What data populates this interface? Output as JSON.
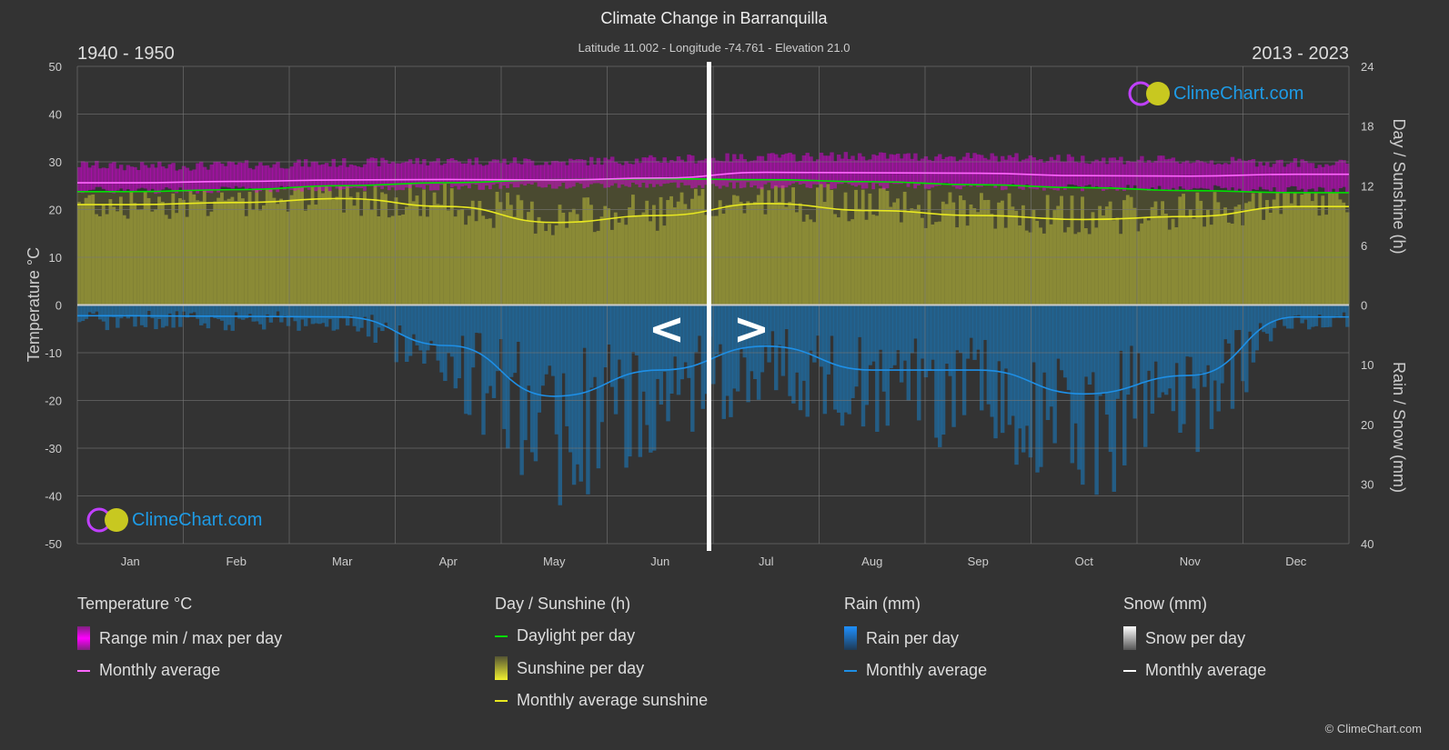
{
  "header": {
    "title": "Climate Change in Barranquilla",
    "subtitle": "Latitude 11.002 - Longitude -74.761 - Elevation 21.0",
    "period_left": "1940 - 1950",
    "period_right": "2013 - 2023",
    "nav_prev": "<",
    "nav_next": ">"
  },
  "logo": {
    "text": "ClimeChart.com"
  },
  "copyright": "© ClimeChart.com",
  "colors": {
    "background": "#333333",
    "temp_range": "#e000e0",
    "temp_avg": "#ff66ff",
    "daylight": "#00e000",
    "sunshine": "#8a8a36",
    "sunshine_avg": "#e8e820",
    "rain": "#1e6fa8",
    "rain_avg": "#1e8fe6",
    "snow_avg": "#ffffff"
  },
  "chart_data": {
    "type": "line",
    "categories": [
      "Jan",
      "Feb",
      "Mar",
      "Apr",
      "May",
      "Jun",
      "Jul",
      "Aug",
      "Sep",
      "Oct",
      "Nov",
      "Dec"
    ],
    "y_left": {
      "label": "Temperature °C",
      "range": [
        -50,
        50
      ],
      "ticks": [
        "50",
        "40",
        "30",
        "20",
        "10",
        "0",
        "-10",
        "-20",
        "-30",
        "-40",
        "-50"
      ]
    },
    "y_right_top": {
      "label": "Day / Sunshine (h)",
      "range": [
        0,
        24
      ],
      "ticks": [
        "24",
        "18",
        "12",
        "6",
        "0"
      ]
    },
    "y_right_bottom": {
      "label": "Rain / Snow (mm)",
      "range": [
        0,
        40
      ],
      "ticks": [
        "0",
        "10",
        "20",
        "30",
        "40"
      ]
    },
    "grid": true,
    "series": [
      {
        "name": "Range min / max per day",
        "kind": "band",
        "min": [
          24.0,
          24.2,
          24.5,
          24.8,
          25.0,
          25.2,
          25.0,
          25.0,
          24.8,
          24.6,
          24.4,
          24.2
        ],
        "max": [
          29.0,
          29.3,
          29.8,
          30.2,
          30.0,
          30.5,
          31.0,
          31.2,
          31.0,
          30.6,
          30.2,
          29.8
        ]
      },
      {
        "name": "Monthly average",
        "kind": "temp_avg",
        "values": [
          25.6,
          25.9,
          26.2,
          26.3,
          26.2,
          26.6,
          27.8,
          27.7,
          27.6,
          27.1,
          27.0,
          27.4
        ]
      },
      {
        "name": "Daylight per day",
        "kind": "daylight",
        "values": [
          11.4,
          11.6,
          12.0,
          12.3,
          12.6,
          12.7,
          12.6,
          12.4,
          12.1,
          11.8,
          11.5,
          11.3
        ]
      },
      {
        "name": "Monthly average sunshine",
        "kind": "sunshine_avg",
        "values": [
          10.1,
          10.3,
          10.7,
          9.9,
          8.3,
          9.0,
          10.2,
          9.5,
          9.0,
          8.6,
          8.9,
          9.9
        ]
      },
      {
        "name": "Monthly average",
        "kind": "rain_avg",
        "values": [
          1.8,
          1.9,
          2.0,
          6.8,
          15.3,
          10.9,
          6.9,
          10.9,
          10.9,
          14.9,
          11.8,
          2.0
        ]
      }
    ]
  },
  "legend": {
    "temperature": {
      "title": "Temperature °C",
      "items": [
        "Range min / max per day",
        "Monthly average"
      ]
    },
    "sunshine": {
      "title": "Day / Sunshine (h)",
      "items": [
        "Daylight per day",
        "Sunshine per day",
        "Monthly average sunshine"
      ]
    },
    "rain": {
      "title": "Rain (mm)",
      "items": [
        "Rain per day",
        "Monthly average"
      ]
    },
    "snow": {
      "title": "Snow (mm)",
      "items": [
        "Snow per day",
        "Monthly average"
      ]
    }
  }
}
